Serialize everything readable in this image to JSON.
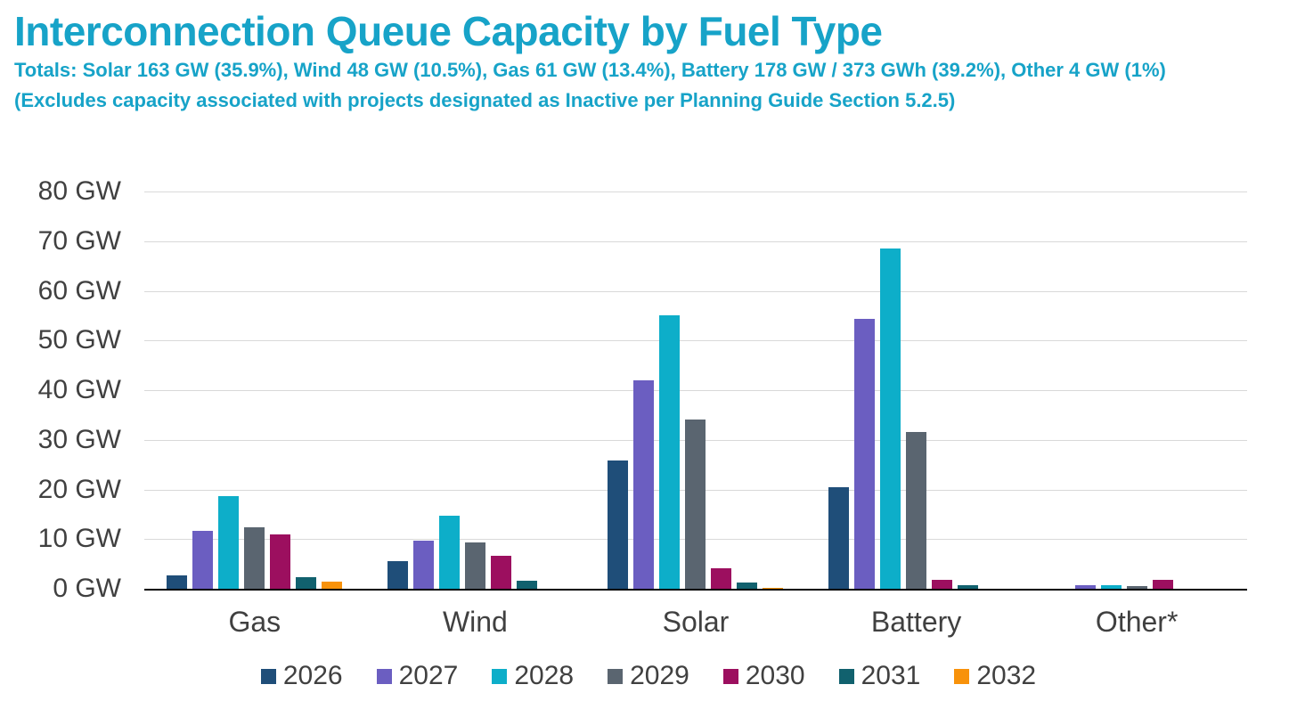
{
  "header": {
    "title": "Interconnection Queue Capacity by Fuel Type",
    "subtitle_line1": "Totals: Solar 163 GW (35.9%), Wind 48 GW (10.5%), Gas 61 GW (13.4%), Battery 178 GW / 373 GWh (39.2%), Other 4 GW (1%)",
    "subtitle_line2": "(Excludes capacity associated with projects designated as Inactive per Planning Guide Section 5.2.5)",
    "accent_color": "#17a3c8"
  },
  "chart_data": {
    "type": "bar",
    "title": "Interconnection Queue Capacity by Fuel Type",
    "categories": [
      "Gas",
      "Wind",
      "Solar",
      "Battery",
      "Other*"
    ],
    "series": [
      {
        "name": "2026",
        "color": "#1f4e79",
        "values": [
          2.7,
          5.6,
          25.8,
          20.4,
          0
        ]
      },
      {
        "name": "2027",
        "color": "#6b5ec1",
        "values": [
          11.7,
          9.6,
          42.0,
          54.3,
          0.7
        ]
      },
      {
        "name": "2028",
        "color": "#0daec9",
        "values": [
          18.6,
          14.7,
          55.0,
          68.5,
          0.8
        ]
      },
      {
        "name": "2029",
        "color": "#5a6570",
        "values": [
          12.3,
          9.4,
          34.0,
          31.5,
          0.5
        ]
      },
      {
        "name": "2030",
        "color": "#9c0f5f",
        "values": [
          11.0,
          6.7,
          4.2,
          1.8,
          1.8
        ]
      },
      {
        "name": "2031",
        "color": "#11616e",
        "values": [
          2.4,
          1.6,
          1.2,
          0.7,
          0
        ]
      },
      {
        "name": "2032",
        "color": "#f8920a",
        "values": [
          1.5,
          0,
          0.2,
          0,
          0
        ]
      }
    ],
    "xlabel": "",
    "ylabel": "",
    "y_tick_format": "{v} GW",
    "y_ticks": [
      0,
      10,
      20,
      30,
      40,
      50,
      60,
      70,
      80
    ],
    "ylim": [
      0,
      80
    ],
    "grid": true,
    "legend_position": "bottom",
    "text_color": "#404040",
    "gridline_color": "#d9d9d9",
    "axis_line_color": "#000000"
  }
}
